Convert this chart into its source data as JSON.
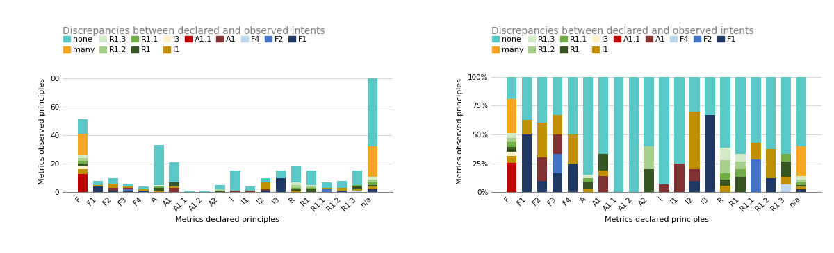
{
  "title": "Discrepancies between declared and observed intents",
  "xlabel": "Metrics declared principles",
  "ylabel": "Metrics observed principles",
  "categories": [
    "F",
    "F1",
    "F2",
    "F3",
    "F4",
    "A",
    "A1",
    "A1.1",
    "A1.2",
    "A2",
    "I",
    "I1",
    "I2",
    "I3",
    "R",
    "R1",
    "R1.1",
    "R1.2",
    "R1.3",
    "n/a"
  ],
  "legend_labels_row1": [
    "none",
    "many",
    "R1.3",
    "R1.2",
    "R1.1",
    "R1",
    "I3",
    "I1",
    "A1.1"
  ],
  "legend_labels_row2": [
    "A1",
    "F4",
    "F2",
    "F1"
  ],
  "stack_colors": {
    "none": "#5BC8C8",
    "many": "#F5A623",
    "R1.3": "#D4EAC8",
    "R1.2": "#A8D08D",
    "R1.1": "#70AD47",
    "R1": "#375623",
    "I3": "#FFF2CC",
    "I1": "#C09000",
    "A1.1": "#C00000",
    "A1": "#823232",
    "F4": "#BDD7EE",
    "F2": "#4472C4",
    "F1": "#1F3864"
  },
  "stack_order": [
    "F1",
    "F2",
    "F4",
    "A1",
    "A1.1",
    "I1",
    "I3",
    "R1",
    "R1.1",
    "R1.2",
    "R1.3",
    "many",
    "none"
  ],
  "data": {
    "F": {
      "none": 10,
      "many": 15,
      "R1.3": 2,
      "R1.2": 2,
      "R1.1": 2,
      "R1": 2,
      "I3": 2,
      "I1": 3,
      "A1.1": 13,
      "A1": 0,
      "F4": 0,
      "F2": 0,
      "F1": 0
    },
    "F1": {
      "none": 3,
      "many": 0,
      "R1.3": 0,
      "R1.2": 0,
      "R1.1": 0,
      "R1": 0,
      "I3": 0,
      "I1": 1,
      "A1.1": 0,
      "A1": 0,
      "F4": 0,
      "F2": 0,
      "F1": 4
    },
    "F2": {
      "none": 4,
      "many": 0,
      "R1.3": 0,
      "R1.2": 0,
      "R1.1": 0,
      "R1": 0,
      "I3": 0,
      "I1": 3,
      "A1.1": 0,
      "A1": 2,
      "F4": 0,
      "F2": 0,
      "F1": 1
    },
    "F3": {
      "none": 2,
      "many": 0,
      "R1.3": 0,
      "R1.2": 0,
      "R1.1": 0,
      "R1": 0,
      "I3": 0,
      "I1": 1,
      "A1.1": 0,
      "A1": 1,
      "F4": 0,
      "F2": 1,
      "F1": 1
    },
    "F4": {
      "none": 2,
      "many": 0,
      "R1.3": 0,
      "R1.2": 0,
      "R1.1": 0,
      "R1": 0,
      "I3": 0,
      "I1": 1,
      "A1.1": 0,
      "A1": 0,
      "F4": 0,
      "F2": 0,
      "F1": 1
    },
    "A": {
      "none": 28,
      "many": 0,
      "R1.3": 1,
      "R1.2": 0,
      "R1.1": 1,
      "R1": 2,
      "I3": 0,
      "I1": 1,
      "A1.1": 0,
      "A1": 0,
      "F4": 0,
      "F2": 0,
      "F1": 0
    },
    "A1": {
      "none": 14,
      "many": 0,
      "R1.3": 0,
      "R1.2": 0,
      "R1.1": 0,
      "R1": 3,
      "I3": 0,
      "I1": 1,
      "A1.1": 0,
      "A1": 3,
      "F4": 0,
      "F2": 0,
      "F1": 0
    },
    "A1.1": {
      "none": 1,
      "many": 0,
      "R1.3": 0,
      "R1.2": 0,
      "R1.1": 0,
      "R1": 0,
      "I3": 0,
      "I1": 0,
      "A1.1": 0,
      "A1": 0,
      "F4": 0,
      "F2": 0,
      "F1": 0
    },
    "A1.2": {
      "none": 1,
      "many": 0,
      "R1.3": 0,
      "R1.2": 0,
      "R1.1": 0,
      "R1": 0,
      "I3": 0,
      "I1": 0,
      "A1.1": 0,
      "A1": 0,
      "F4": 0,
      "F2": 0,
      "F1": 0
    },
    "A2": {
      "none": 3,
      "many": 0,
      "R1.3": 0,
      "R1.2": 1,
      "R1.1": 0,
      "R1": 1,
      "I3": 0,
      "I1": 0,
      "A1.1": 0,
      "A1": 0,
      "F4": 0,
      "F2": 0,
      "F1": 0
    },
    "I": {
      "none": 14,
      "many": 0,
      "R1.3": 0,
      "R1.2": 0,
      "R1.1": 0,
      "R1": 0,
      "I3": 0,
      "I1": 0,
      "A1.1": 0,
      "A1": 1,
      "F4": 0,
      "F2": 0,
      "F1": 0
    },
    "I1": {
      "none": 3,
      "many": 0,
      "R1.3": 0,
      "R1.2": 0,
      "R1.1": 0,
      "R1": 0,
      "I3": 0,
      "I1": 0,
      "A1.1": 0,
      "A1": 1,
      "F4": 0,
      "F2": 0,
      "F1": 0
    },
    "I2": {
      "none": 3,
      "many": 0,
      "R1.3": 0,
      "R1.2": 0,
      "R1.1": 0,
      "R1": 0,
      "I3": 0,
      "I1": 5,
      "A1.1": 0,
      "A1": 1,
      "F4": 0,
      "F2": 0,
      "F1": 1
    },
    "I3": {
      "none": 5,
      "many": 0,
      "R1.3": 0,
      "R1.2": 0,
      "R1.1": 0,
      "R1": 0,
      "I3": 0,
      "I1": 0,
      "A1.1": 0,
      "A1": 0,
      "F4": 0,
      "F2": 0,
      "F1": 10
    },
    "R": {
      "none": 11,
      "many": 0,
      "R1.3": 2,
      "R1.2": 2,
      "R1.1": 1,
      "R1": 1,
      "I3": 0,
      "I1": 1,
      "A1.1": 0,
      "A1": 0,
      "F4": 0,
      "F2": 0,
      "F1": 0
    },
    "R1": {
      "none": 10,
      "many": 0,
      "R1.3": 1,
      "R1.2": 1,
      "R1.1": 1,
      "R1": 2,
      "I3": 0,
      "I1": 0,
      "A1.1": 0,
      "A1": 0,
      "F4": 0,
      "F2": 0,
      "F1": 0
    },
    "R1.1": {
      "none": 4,
      "many": 0,
      "R1.3": 0,
      "R1.2": 0,
      "R1.1": 0,
      "R1": 0,
      "I3": 0,
      "I1": 1,
      "A1.1": 0,
      "A1": 0,
      "F4": 0,
      "F2": 2,
      "F1": 0
    },
    "R1.2": {
      "none": 5,
      "many": 0,
      "R1.3": 0,
      "R1.2": 0,
      "R1.1": 0,
      "R1": 0,
      "I3": 0,
      "I1": 2,
      "A1.1": 0,
      "A1": 0,
      "F4": 0,
      "F2": 0,
      "F1": 1
    },
    "R1.3": {
      "none": 10,
      "many": 0,
      "R1.3": 0,
      "R1.2": 0,
      "R1.1": 1,
      "R1": 2,
      "I3": 0,
      "I1": 1,
      "A1.1": 0,
      "A1": 0,
      "F4": 1,
      "F2": 0,
      "F1": 0
    },
    "n/a": {
      "none": 48,
      "many": 21,
      "R1.3": 2,
      "R1.2": 2,
      "R1.1": 2,
      "R1": 1,
      "I3": 0,
      "I1": 2,
      "A1.1": 0,
      "A1": 0,
      "F4": 0,
      "F2": 0,
      "F1": 2
    }
  },
  "background_color": "#ffffff",
  "title_color": "#808080",
  "title_fontsize": 10,
  "axis_fontsize": 8,
  "tick_fontsize": 7.5,
  "legend_fontsize": 8
}
